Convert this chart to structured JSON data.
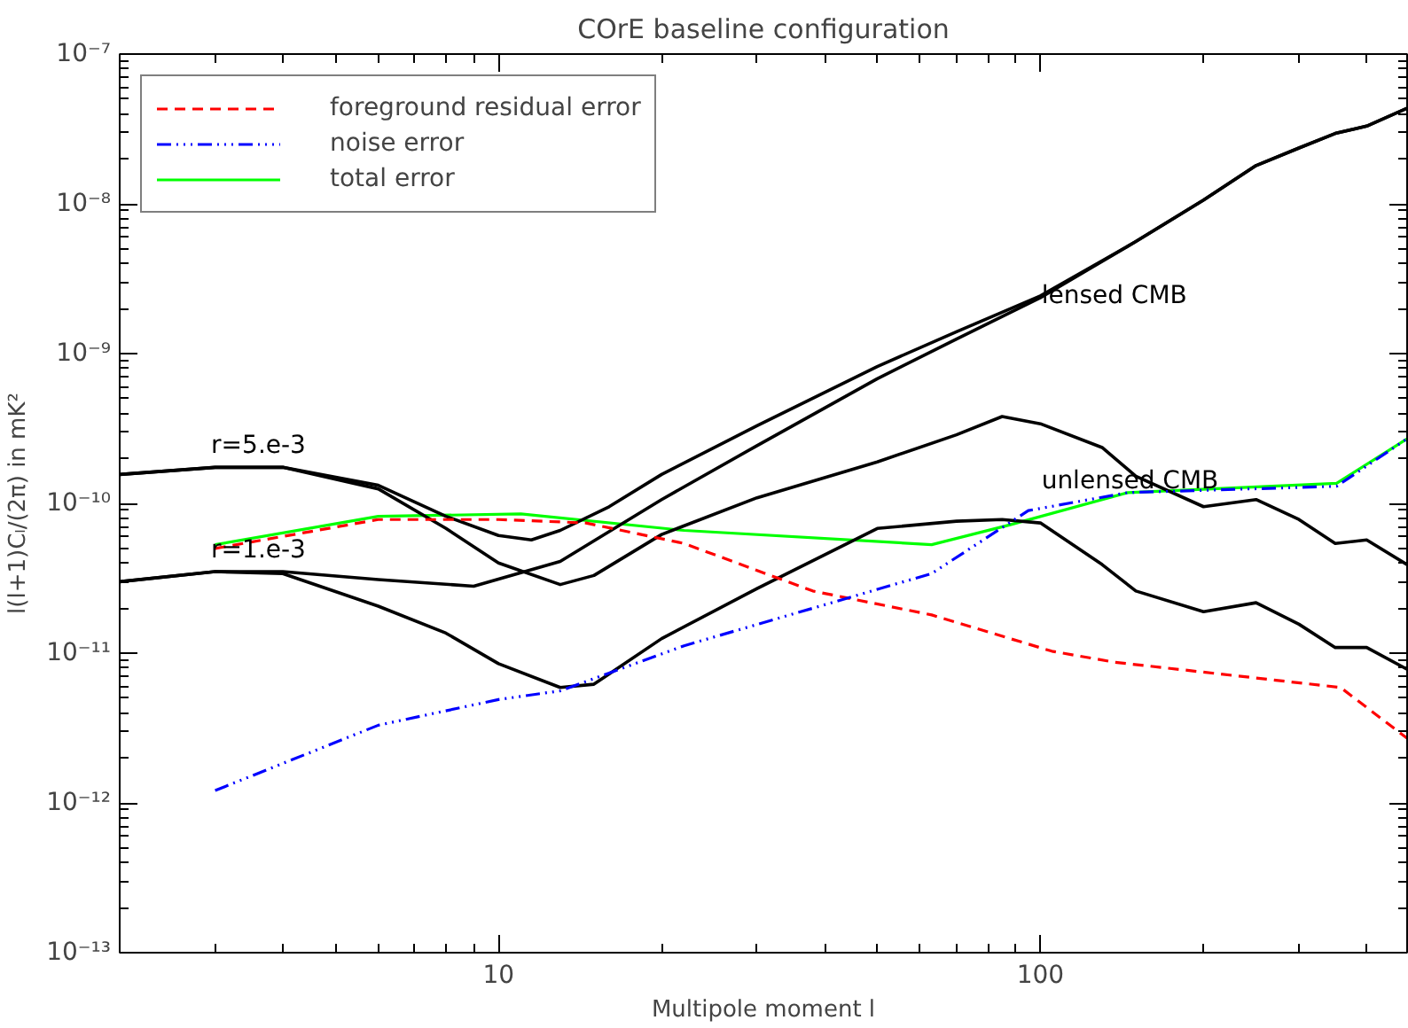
{
  "chart_data": {
    "type": "line",
    "title": "COrE baseline configuration",
    "xlabel": "Multipole moment l",
    "ylabel": "l(l+1)Cₗ/(2π) in mK²",
    "log": "xy",
    "grid": false,
    "legend": "top left",
    "marker": "none",
    "xlim": [
      2,
      475
    ],
    "ylim": [
      1e-13,
      1e-07
    ],
    "xticks": [
      {
        "value": 3,
        "label": null
      },
      {
        "value": 4,
        "label": null
      },
      {
        "value": 5,
        "label": null
      },
      {
        "value": 6,
        "label": null
      },
      {
        "value": 7,
        "label": null
      },
      {
        "value": 8,
        "label": null
      },
      {
        "value": 9,
        "label": null
      },
      10,
      {
        "value": 20,
        "label": null
      },
      {
        "value": 30,
        "label": null
      },
      {
        "value": 40,
        "label": null
      },
      {
        "value": 50,
        "label": null
      },
      {
        "value": 60,
        "label": null
      },
      {
        "value": 70,
        "label": null
      },
      {
        "value": 80,
        "label": null
      },
      {
        "value": 90,
        "label": null
      },
      100,
      {
        "value": 200,
        "label": null
      },
      {
        "value": 300,
        "label": null
      },
      {
        "value": 400,
        "label": null
      }
    ],
    "yticks": [
      {
        "value": 1e-13,
        "label": "10⁻¹³"
      },
      {
        "value": 2e-13,
        "label": null
      },
      {
        "value": 3e-13,
        "label": null
      },
      {
        "value": 4e-13,
        "label": null
      },
      {
        "value": 5e-13,
        "label": null
      },
      {
        "value": 6e-13,
        "label": null
      },
      {
        "value": 7e-13,
        "label": null
      },
      {
        "value": 8e-13,
        "label": null
      },
      {
        "value": 9e-13,
        "label": null
      },
      {
        "value": 1e-12,
        "label": "10⁻¹²"
      },
      {
        "value": 2e-12,
        "label": null
      },
      {
        "value": 3e-12,
        "label": null
      },
      {
        "value": 4e-12,
        "label": null
      },
      {
        "value": 5e-12,
        "label": null
      },
      {
        "value": 6e-12,
        "label": null
      },
      {
        "value": 7e-12,
        "label": null
      },
      {
        "value": 8e-12,
        "label": null
      },
      {
        "value": 9e-12,
        "label": null
      },
      {
        "value": 1e-11,
        "label": "10⁻¹¹"
      },
      {
        "value": 2e-11,
        "label": null
      },
      {
        "value": 3e-11,
        "label": null
      },
      {
        "value": 4e-11,
        "label": null
      },
      {
        "value": 5e-11,
        "label": null
      },
      {
        "value": 6e-11,
        "label": null
      },
      {
        "value": 7e-11,
        "label": null
      },
      {
        "value": 8e-11,
        "label": null
      },
      {
        "value": 9e-11,
        "label": null
      },
      {
        "value": 1e-10,
        "label": "10⁻¹⁰"
      },
      {
        "value": 2e-10,
        "label": null
      },
      {
        "value": 3e-10,
        "label": null
      },
      {
        "value": 4e-10,
        "label": null
      },
      {
        "value": 5e-10,
        "label": null
      },
      {
        "value": 6e-10,
        "label": null
      },
      {
        "value": 7e-10,
        "label": null
      },
      {
        "value": 8e-10,
        "label": null
      },
      {
        "value": 9e-10,
        "label": null
      },
      {
        "value": 1e-09,
        "label": "10⁻⁹"
      },
      {
        "value": 2e-09,
        "label": null
      },
      {
        "value": 3e-09,
        "label": null
      },
      {
        "value": 4e-09,
        "label": null
      },
      {
        "value": 5e-09,
        "label": null
      },
      {
        "value": 6e-09,
        "label": null
      },
      {
        "value": 7e-09,
        "label": null
      },
      {
        "value": 8e-09,
        "label": null
      },
      {
        "value": 9e-09,
        "label": null
      },
      {
        "value": 1e-08,
        "label": "10⁻⁸"
      },
      {
        "value": 2e-08,
        "label": null
      },
      {
        "value": 3e-08,
        "label": null
      },
      {
        "value": 4e-08,
        "label": null
      },
      {
        "value": 5e-08,
        "label": null
      },
      {
        "value": 6e-08,
        "label": null
      },
      {
        "value": 7e-08,
        "label": null
      },
      {
        "value": 8e-08,
        "label": null
      },
      {
        "value": 9e-08,
        "label": null
      },
      {
        "value": 1e-07,
        "label": "10⁻⁷"
      }
    ],
    "series": [
      {
        "name": "foreground residual error",
        "color": "#ff0000",
        "line_style": "dashed",
        "x": [
          3,
          6,
          10,
          14.5,
          22,
          38,
          63,
          105,
          137,
          358,
          475
        ],
        "values": [
          5e-11,
          7.8e-11,
          7.8e-11,
          7.4e-11,
          5.4e-11,
          2.6e-11,
          1.8e-11,
          1.03e-11,
          8.7e-12,
          5.9e-12,
          2.7e-12
        ]
      },
      {
        "name": "noise error",
        "color": "#0000ff",
        "line_style": "dashdot",
        "x": [
          3,
          6,
          10,
          13,
          22,
          63,
          95,
          145,
          352,
          475
        ],
        "values": [
          1.21e-12,
          3.3e-12,
          4.9e-12,
          5.6e-12,
          1.12e-11,
          3.4e-11,
          8.95e-11,
          1.18e-10,
          1.3e-10,
          2.7e-10
        ]
      },
      {
        "name": "total error",
        "color": "#00ff00",
        "line_style": "solid",
        "x": [
          3,
          6,
          11,
          22,
          63,
          88,
          145,
          352,
          475
        ],
        "values": [
          5.3e-11,
          8.2e-11,
          8.5e-11,
          6.6e-11,
          5.3e-11,
          7.2e-11,
          1.18e-10,
          1.36e-10,
          2.7e-10
        ]
      },
      {
        "color": "#000000",
        "line_style": "solid",
        "x": [
          2,
          3,
          4,
          6,
          9,
          13,
          20,
          30,
          50,
          70,
          100,
          150,
          200,
          250,
          300,
          350,
          400,
          475
        ],
        "values": [
          3e-11,
          3.5e-11,
          3.5e-11,
          3.1e-11,
          2.8e-11,
          4.1e-11,
          1.06e-10,
          2.43e-10,
          6.8e-10,
          1.25e-09,
          2.36e-09,
          5.6e-09,
          1.06e-08,
          1.8e-08,
          2.36e-08,
          2.95e-08,
          3.3e-08,
          4.35e-08
        ]
      },
      {
        "color": "#000000",
        "line_style": "solid",
        "x": [
          2,
          3,
          4,
          6,
          8,
          10,
          11.5,
          13,
          16,
          20,
          30,
          50,
          70,
          100,
          150,
          200,
          250,
          300,
          350,
          400,
          475
        ],
        "values": [
          1.56e-10,
          1.74e-10,
          1.74e-10,
          1.32e-10,
          8.2e-11,
          6.1e-11,
          5.7e-11,
          6.6e-11,
          9.5e-11,
          1.56e-10,
          3.3e-10,
          8.2e-10,
          1.4e-09,
          2.43e-09,
          5.6e-09,
          1.06e-08,
          1.8e-08,
          2.36e-08,
          2.95e-08,
          3.3e-08,
          4.35e-08
        ]
      },
      {
        "color": "#000000",
        "line_style": "solid",
        "x": [
          2,
          3,
          4,
          6,
          8,
          10,
          13,
          15,
          20,
          30,
          50,
          70,
          85,
          100,
          130,
          150,
          200,
          250,
          300,
          350,
          400,
          475
        ],
        "values": [
          1.56e-10,
          1.74e-10,
          1.74e-10,
          1.25e-10,
          6.8e-11,
          4e-11,
          2.87e-11,
          3.3e-11,
          6.2e-11,
          1.09e-10,
          1.89e-10,
          2.87e-10,
          3.8e-10,
          3.4e-10,
          2.36e-10,
          1.52e-10,
          9.5e-11,
          1.06e-10,
          7.8e-11,
          5.4e-11,
          5.7e-11,
          3.9e-11
        ]
      },
      {
        "color": "#000000",
        "line_style": "solid",
        "x": [
          2,
          3,
          4,
          6,
          8,
          10,
          13,
          15,
          20,
          30,
          50,
          70,
          85,
          100,
          130,
          150,
          200,
          250,
          300,
          350,
          400,
          475
        ],
        "values": [
          3e-11,
          3.5e-11,
          3.4e-11,
          2.06e-11,
          1.36e-11,
          8.5e-12,
          5.9e-12,
          6.2e-12,
          1.25e-11,
          2.7e-11,
          6.8e-11,
          7.6e-11,
          7.8e-11,
          7.4e-11,
          3.9e-11,
          2.6e-11,
          1.89e-11,
          2.17e-11,
          1.56e-11,
          1.09e-11,
          1.09e-11,
          7.8e-12
        ]
      }
    ],
    "annotations": [
      "r=5.e-3",
      "r=1.e-3",
      "lensed CMB",
      "unlensed CMB"
    ]
  }
}
